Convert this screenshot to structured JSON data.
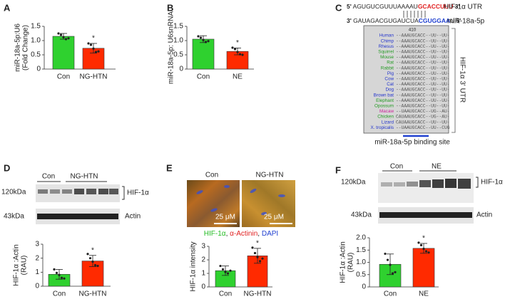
{
  "chart_data": [
    {
      "type": "bar",
      "panel": "A",
      "y_label": [
        "miR-18a-5p:U6",
        "(Fold Change)"
      ],
      "categories": [
        "Con",
        "NG-HTN"
      ],
      "colors": [
        "#2fd12f",
        "#ff2a00"
      ],
      "values": [
        1.15,
        0.73
      ],
      "errors": [
        0.1,
        0.17
      ],
      "points": [
        [
          1.25,
          1.2,
          1.12,
          1.05,
          1.08
        ],
        [
          0.9,
          0.85,
          0.72,
          0.6,
          0.62
        ]
      ],
      "significance": "*",
      "ylim": [
        0,
        1.5
      ],
      "yticks": [
        0,
        0.5,
        {
          "value": 1,
          "label": "1.0"
        },
        1.5
      ]
    },
    {
      "type": "bar",
      "panel": "B",
      "y_label": [
        "miR-18a-5p: U6snRNA"
      ],
      "categories": [
        "Con",
        "NE"
      ],
      "colors": [
        "#2fd12f",
        "#ff2a00"
      ],
      "values": [
        1.05,
        0.62
      ],
      "errors": [
        0.12,
        0.12
      ],
      "points": [
        [
          1.15,
          1.1,
          1.02,
          0.95,
          0.98
        ],
        [
          0.75,
          0.7,
          0.6,
          0.52,
          0.5
        ]
      ],
      "significance": "*",
      "ylim": [
        0,
        1.5
      ],
      "yticks": [
        0,
        0.5,
        {
          "value": 1,
          "label": "1.0"
        },
        1.5
      ]
    },
    {
      "type": "bar",
      "panel": "D",
      "y_label": [
        "HIF-1α :Actin",
        "(RAU)"
      ],
      "categories": [
        "Con",
        "NG-HTN"
      ],
      "colors": [
        "#2fd12f",
        "#ff2a00"
      ],
      "values": [
        0.85,
        1.8
      ],
      "errors": [
        0.35,
        0.4
      ],
      "points": [
        [
          1.2,
          0.95,
          0.8,
          0.6,
          0.55
        ],
        [
          2.3,
          2.0,
          1.75,
          1.5,
          1.45
        ]
      ],
      "significance": "*",
      "ylim": [
        0,
        3
      ],
      "yticks": [
        0,
        1,
        2,
        3
      ]
    },
    {
      "type": "bar",
      "panel": "E",
      "y_label": [
        "HIF-1α intensity"
      ],
      "categories": [
        "Con",
        "NG-HTN"
      ],
      "colors": [
        "#2fd12f",
        "#ff2a00"
      ],
      "values": [
        1.2,
        2.3
      ],
      "errors": [
        0.35,
        0.55
      ],
      "points": [
        [
          1.55,
          1.3,
          1.1,
          1.0,
          1.2
        ],
        [
          2.9,
          2.5,
          2.2,
          1.9,
          2.1
        ]
      ],
      "significance": "*",
      "ylim": [
        0,
        3
      ],
      "yticks": [
        0,
        1,
        2,
        3
      ]
    },
    {
      "type": "bar",
      "panel": "F",
      "y_label": [
        "HIF-1α :Actin",
        "(RAU)"
      ],
      "categories": [
        "Con",
        "NE"
      ],
      "colors": [
        "#2fd12f",
        "#ff2a00"
      ],
      "values": [
        0.92,
        1.57
      ],
      "errors": [
        0.42,
        0.2
      ],
      "points": [
        [
          1.35,
          1.1,
          0.9,
          0.55,
          0.6
        ],
        [
          1.8,
          1.7,
          1.55,
          1.45,
          1.4
        ]
      ],
      "significance": "*",
      "ylim": [
        0,
        2
      ],
      "yticks": [
        0,
        0.5,
        {
          "value": 1,
          "label": "1.0"
        },
        1.5,
        {
          "value": 2,
          "label": "2.0"
        }
      ]
    }
  ],
  "figure": {
    "panel_labels": [
      "A",
      "B",
      "C",
      "D",
      "E",
      "F"
    ],
    "C": {
      "top_5": "5'",
      "top_seq": "AGUGUCGUUUAAAAU",
      "top_site": "GCACCUUU",
      "top_3": "3'",
      "top_name": "HIF-1α UTR",
      "bottom_3": "3'",
      "bottom_seq": "GAUAGACGUGAUCUA",
      "bottom_seed": "CGUGGAA",
      "bottom_end": "U",
      "bottom_5": "5'",
      "bottom_name": "miR-18a-5p",
      "position": "410",
      "side_label": "HIF-1α 3' UTR",
      "site_label": "miR-18a-5p binding  site",
      "species": [
        {
          "name": "Human",
          "color": "#2233cc",
          "seq": "--AAAUGCACC--UU--UU-"
        },
        {
          "name": "Chimp",
          "color": "#2233cc",
          "seq": "--AAAUGCACC--UU--UU-"
        },
        {
          "name": "Rhesus",
          "color": "#2233cc",
          "seq": "--AAAUGCACC--UU--UU-"
        },
        {
          "name": "Squirrel",
          "color": "#229922",
          "seq": "--AAAUGCACC--UU--UU-"
        },
        {
          "name": "Mouse",
          "color": "#229922",
          "seq": "--AAAUGCACC--UU--UU-"
        },
        {
          "name": "Rat",
          "color": "#229922",
          "seq": "--AAAUGCACC--UU--UU-"
        },
        {
          "name": "Rabbit",
          "color": "#229922",
          "seq": "--AAAUGCACC--UU--UU-"
        },
        {
          "name": "Pig",
          "color": "#2233cc",
          "seq": "--AAAUGCACC--UU--UU-"
        },
        {
          "name": "Cow",
          "color": "#2233cc",
          "seq": "--AAAUGCACC--UU--UU-"
        },
        {
          "name": "Cat",
          "color": "#2233cc",
          "seq": "--AAAUGCACC--UU--UU-"
        },
        {
          "name": "Dog",
          "color": "#2233cc",
          "seq": "--AAAUGCACC--UU--UU-"
        },
        {
          "name": "Brown bat",
          "color": "#2233cc",
          "seq": "--AAAUGCACC--UU--UU-"
        },
        {
          "name": "Elephant",
          "color": "#229922",
          "seq": "--AAAUGCACC--UU--UU-"
        },
        {
          "name": "Opossum",
          "color": "#229922",
          "seq": "--AAAUGCACC--UU--UU-"
        },
        {
          "name": "Macaw",
          "color": "#cc2299",
          "seq": "--UAAUGCACC--UG--AU-"
        },
        {
          "name": "Chicken",
          "color": "#229922",
          "seq": "CAUAAUGCACC--UG--AU-"
        },
        {
          "name": "Lizard",
          "color": "#2233cc",
          "seq": "CAUAAUGCACC--UU--UU-"
        },
        {
          "name": "X. tropicalis",
          "color": "#2233cc",
          "seq": "--UAAUGCACC--UU--CUG"
        }
      ]
    },
    "D": {
      "group_1": "Con",
      "group_2": "NG-HTN",
      "band_1_size": "120kDa",
      "band_1": "HIF-1α",
      "band_2_size": "43kDa",
      "band_2": "Actin"
    },
    "E": {
      "image_1": "Con",
      "image_2": "NG-HTN",
      "scale_1": "25 μM",
      "scale_2": "25 μM",
      "stain_1": "HIF-1α",
      "sep_1": ", ",
      "stain_2": "α-Actinin",
      "sep_2": ", ",
      "stain_3": "DAPI"
    },
    "F": {
      "group_1": "Con",
      "group_2": "NE",
      "band_1_size": "120kDa",
      "band_1": "HIF-1α",
      "band_2_size": "43kDa",
      "band_2": "Actin"
    }
  }
}
